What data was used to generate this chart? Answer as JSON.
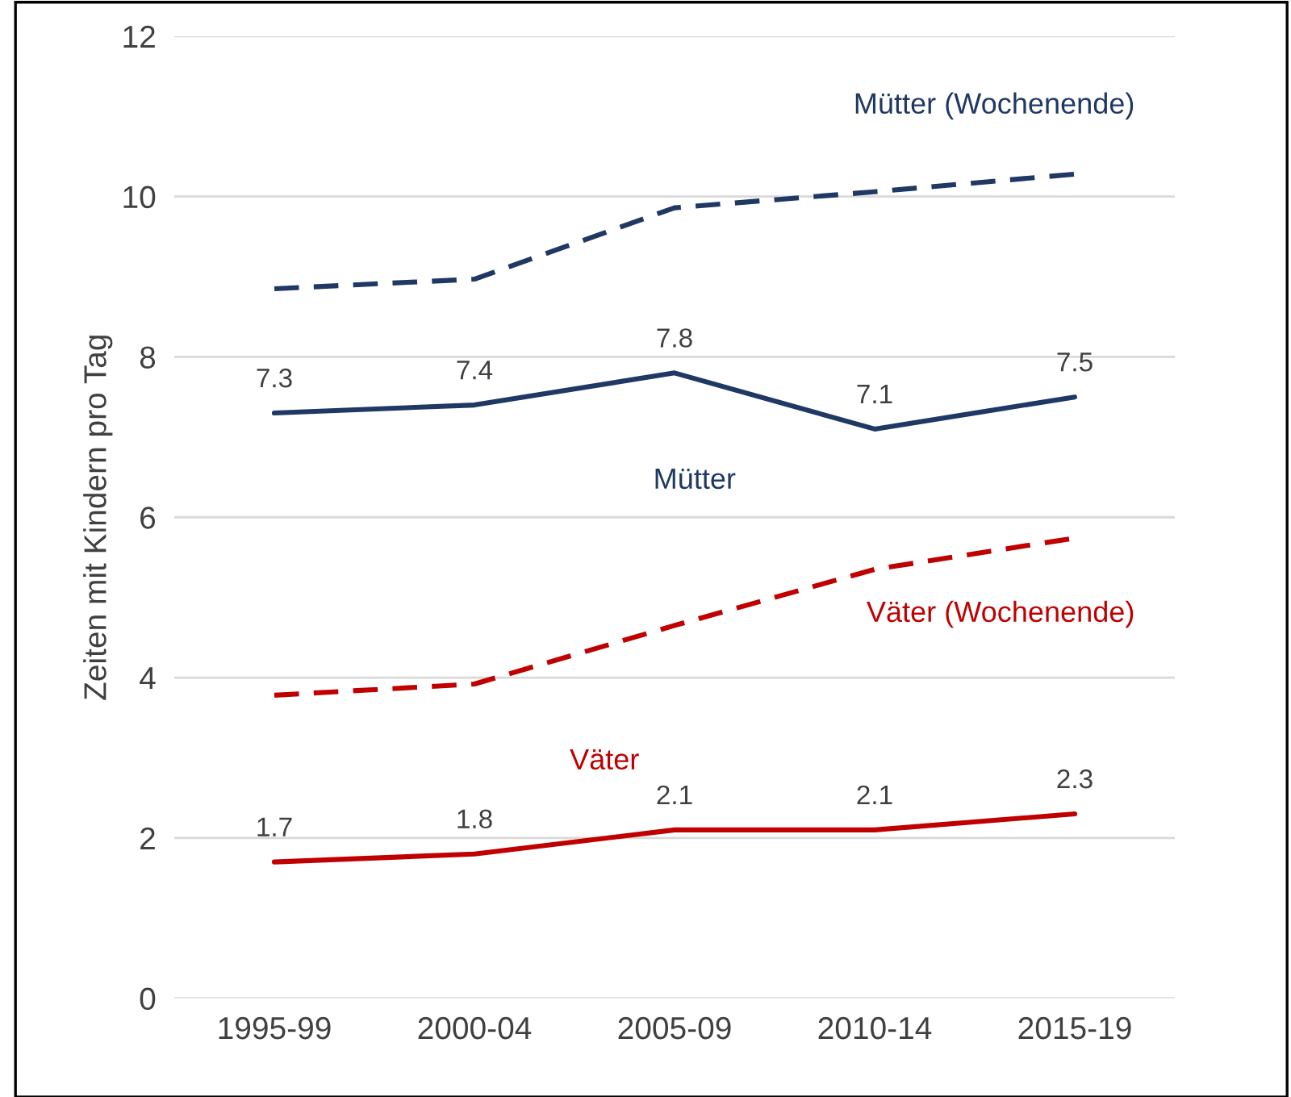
{
  "chart_data": {
    "type": "line",
    "ylabel": "Zeiten mit Kindern pro Tag",
    "categories": [
      "1995-99",
      "2000-04",
      "2005-09",
      "2010-14",
      "2015-19"
    ],
    "series": [
      {
        "name": "Mütter (Wochenende)",
        "color": "#1f3864",
        "line_style": "dashed",
        "values": [
          8.85,
          8.97,
          9.86,
          10.06,
          10.28
        ]
      },
      {
        "name": "Mütter",
        "color": "#1f3864",
        "line_style": "solid",
        "values": [
          7.3,
          7.4,
          7.8,
          7.1,
          7.5
        ],
        "data_labels": true
      },
      {
        "name": "Väter (Wochenende)",
        "color": "#c00000",
        "line_style": "dashed",
        "values": [
          3.78,
          3.92,
          4.65,
          5.35,
          5.74
        ]
      },
      {
        "name": "Väter",
        "color": "#c00000",
        "line_style": "solid",
        "values": [
          1.7,
          1.8,
          2.1,
          2.1,
          2.3
        ],
        "data_labels": true
      }
    ],
    "ylim": [
      0,
      12
    ],
    "yticks": [
      0,
      2,
      4,
      6,
      8,
      10,
      12
    ],
    "grid": "y",
    "legend": false,
    "marker": "none"
  }
}
